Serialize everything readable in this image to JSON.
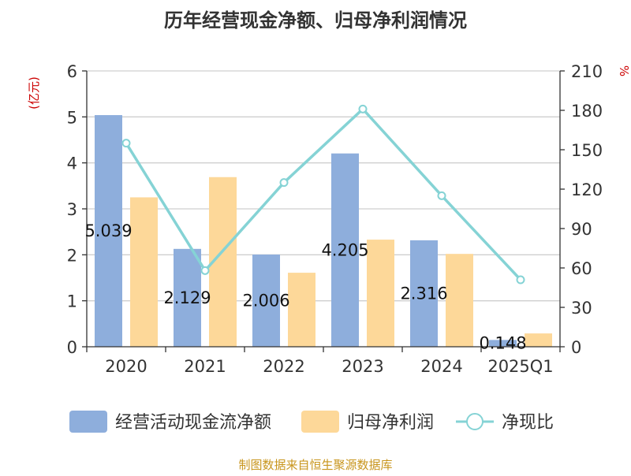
{
  "chart_data": {
    "type": "bar",
    "title": "历年经营现金净额、归母净利润情况",
    "categories": [
      "2020",
      "2021",
      "2022",
      "2023",
      "2024",
      "2025Q1"
    ],
    "y_left": {
      "unit": "(亿元)",
      "ylim": [
        0,
        6
      ],
      "ticks": [
        "0",
        "1",
        "2",
        "3",
        "4",
        "5",
        "6"
      ]
    },
    "y_right": {
      "unit": "%",
      "ylim": [
        0,
        210
      ],
      "ticks": [
        "0",
        "30",
        "60",
        "90",
        "120",
        "150",
        "180",
        "210"
      ]
    },
    "series": [
      {
        "name": "经营活动现金流净额",
        "kind": "bar",
        "axis": "left",
        "color": "#8eaedc",
        "values": [
          5.039,
          2.129,
          2.006,
          4.205,
          2.316,
          0.148
        ],
        "labels": [
          "5.039",
          "2.129",
          "2.006",
          "4.205",
          "2.316",
          "0.148"
        ]
      },
      {
        "name": "归母净利润",
        "kind": "bar",
        "axis": "left",
        "color": "#fdd899",
        "values": [
          3.25,
          3.69,
          1.61,
          2.33,
          2.02,
          0.29
        ]
      },
      {
        "name": "净现比",
        "kind": "line",
        "axis": "right",
        "color": "#85d3d5",
        "values": [
          155,
          58,
          125,
          181,
          115,
          51
        ]
      }
    ],
    "grid": true,
    "legend_position": "bottom"
  },
  "footer": {
    "source": "制图数据来自恒生聚源数据库"
  },
  "colors": {
    "title": "#333333",
    "unit": "#cc0000",
    "axis": "#333333",
    "grid": "#cfcfcf",
    "source": "#c8951c"
  }
}
